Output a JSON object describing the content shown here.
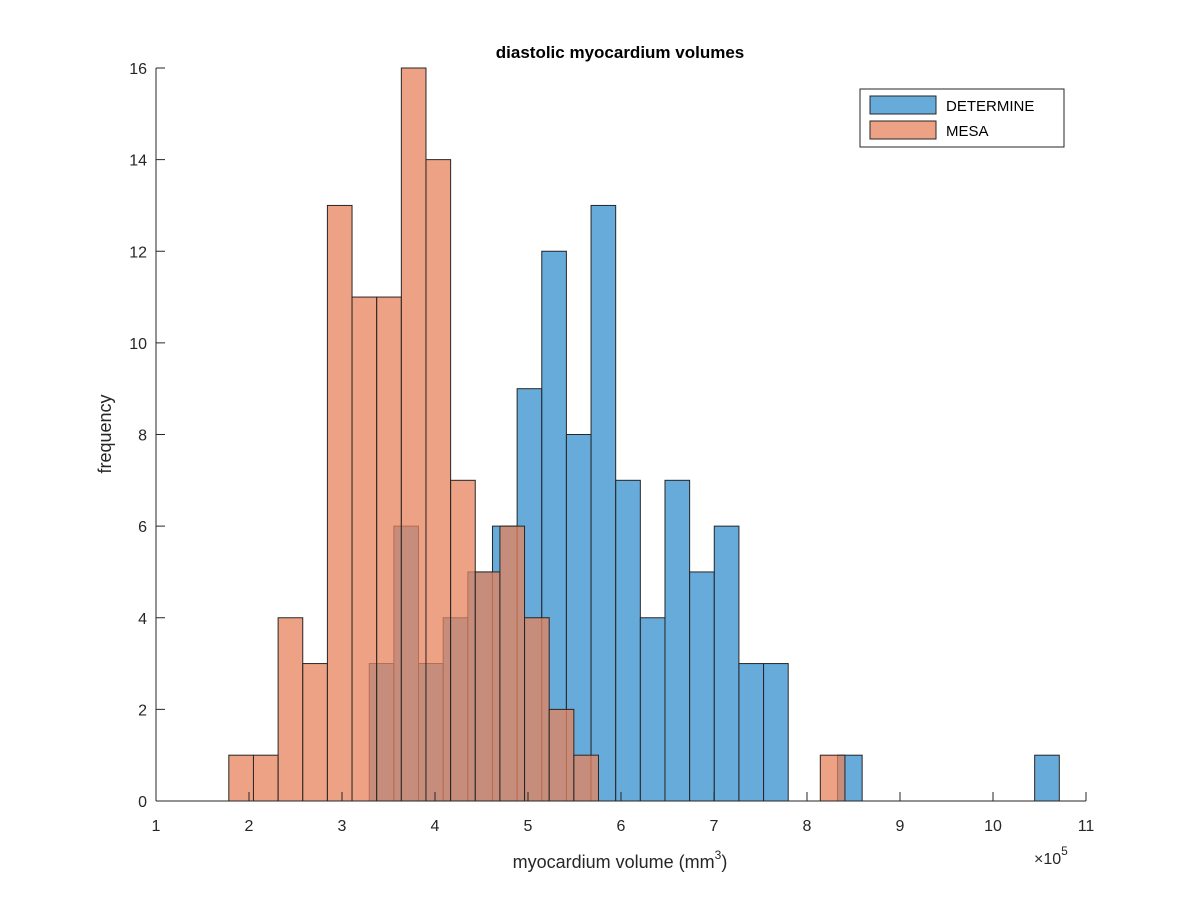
{
  "chart_data": {
    "type": "bar",
    "title": "diastolic myocardium volumes",
    "xlabel": {
      "text": "myocardium volume (mm",
      "sup": "3",
      "close": ")"
    },
    "ylabel": "frequency",
    "xlim": [
      1,
      11
    ],
    "ylim": [
      0,
      16
    ],
    "xticks": [
      1,
      2,
      3,
      4,
      5,
      6,
      7,
      8,
      9,
      10,
      11
    ],
    "yticks": [
      0,
      2,
      4,
      6,
      8,
      10,
      12,
      14,
      16
    ],
    "x_exponent": {
      "base": "×10",
      "exp": "5"
    },
    "bin_width": 0.265,
    "legend_position": "top-right",
    "series": [
      {
        "name": "DETERMINE",
        "color": "#4b9cd3",
        "bins": [
          {
            "left": 3.293,
            "count": 3
          },
          {
            "left": 3.558,
            "count": 6
          },
          {
            "left": 3.823,
            "count": 3
          },
          {
            "left": 4.088,
            "count": 4
          },
          {
            "left": 4.353,
            "count": 5
          },
          {
            "left": 4.618,
            "count": 6
          },
          {
            "left": 4.883,
            "count": 9
          },
          {
            "left": 5.148,
            "count": 12
          },
          {
            "left": 5.413,
            "count": 8
          },
          {
            "left": 5.678,
            "count": 13
          },
          {
            "left": 5.943,
            "count": 7
          },
          {
            "left": 6.208,
            "count": 4
          },
          {
            "left": 6.473,
            "count": 7
          },
          {
            "left": 6.738,
            "count": 5
          },
          {
            "left": 7.003,
            "count": 6
          },
          {
            "left": 7.268,
            "count": 3
          },
          {
            "left": 7.533,
            "count": 3
          },
          {
            "left": 8.328,
            "count": 1
          },
          {
            "left": 10.448,
            "count": 1
          }
        ]
      },
      {
        "name": "MESA",
        "color": "#e8835c",
        "bins": [
          {
            "left": 1.783,
            "count": 1
          },
          {
            "left": 2.048,
            "count": 1
          },
          {
            "left": 2.313,
            "count": 4
          },
          {
            "left": 2.578,
            "count": 3
          },
          {
            "left": 2.843,
            "count": 13
          },
          {
            "left": 3.108,
            "count": 11
          },
          {
            "left": 3.373,
            "count": 11
          },
          {
            "left": 3.638,
            "count": 16
          },
          {
            "left": 3.903,
            "count": 14
          },
          {
            "left": 4.168,
            "count": 7
          },
          {
            "left": 4.433,
            "count": 5
          },
          {
            "left": 4.698,
            "count": 6
          },
          {
            "left": 4.963,
            "count": 4
          },
          {
            "left": 5.228,
            "count": 2
          },
          {
            "left": 5.493,
            "count": 1
          },
          {
            "left": 8.143,
            "count": 1
          }
        ]
      }
    ]
  }
}
